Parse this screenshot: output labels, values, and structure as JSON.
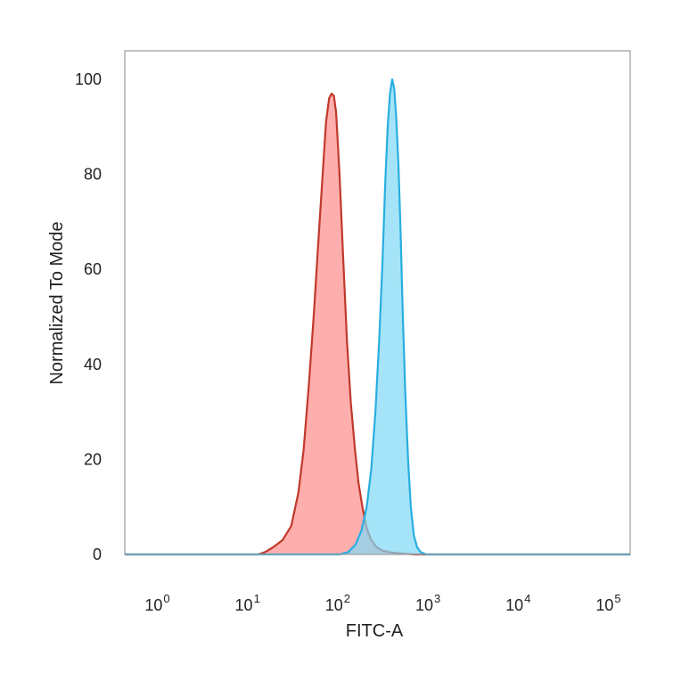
{
  "chart_data": {
    "type": "area",
    "title": "",
    "xlabel": "FITC-A",
    "ylabel": "Normalized To Mode",
    "x_scale": "log10",
    "xlim": [
      0.5,
      200000
    ],
    "ylim": [
      0,
      106
    ],
    "x_ticks": [
      {
        "value": 1,
        "base": "10",
        "exp": "0"
      },
      {
        "value": 10,
        "base": "10",
        "exp": "1"
      },
      {
        "value": 100,
        "base": "10",
        "exp": "2"
      },
      {
        "value": 1000,
        "base": "10",
        "exp": "3"
      },
      {
        "value": 10000,
        "base": "10",
        "exp": "4"
      },
      {
        "value": 100000,
        "base": "10",
        "exp": "5"
      }
    ],
    "y_ticks": [
      {
        "value": 0,
        "label": "0"
      },
      {
        "value": 20,
        "label": "20"
      },
      {
        "value": 40,
        "label": "40"
      },
      {
        "value": 60,
        "label": "60"
      },
      {
        "value": 80,
        "label": "80"
      },
      {
        "value": 100,
        "label": "100"
      }
    ],
    "grid": false,
    "legend": "none",
    "series": [
      {
        "fill": "#ff8c8c",
        "fill_opacity": 0.7,
        "stroke": "#c0392b",
        "points": [
          [
            0.5,
            0
          ],
          [
            15,
            0
          ],
          [
            18,
            0.5
          ],
          [
            22,
            1.5
          ],
          [
            28,
            3
          ],
          [
            35,
            6
          ],
          [
            42,
            13
          ],
          [
            48,
            22
          ],
          [
            55,
            36
          ],
          [
            62,
            50
          ],
          [
            70,
            66
          ],
          [
            78,
            80
          ],
          [
            85,
            91
          ],
          [
            92,
            96
          ],
          [
            98,
            97
          ],
          [
            104,
            96.5
          ],
          [
            110,
            93
          ],
          [
            120,
            80
          ],
          [
            132,
            62
          ],
          [
            145,
            45
          ],
          [
            160,
            32
          ],
          [
            178,
            22
          ],
          [
            195,
            15
          ],
          [
            215,
            10
          ],
          [
            240,
            5.5
          ],
          [
            270,
            3
          ],
          [
            310,
            1.5
          ],
          [
            360,
            0.8
          ],
          [
            450,
            0.4
          ],
          [
            600,
            0.2
          ],
          [
            800,
            0
          ],
          [
            200000,
            0
          ]
        ]
      },
      {
        "fill": "#7fd8f5",
        "fill_opacity": 0.7,
        "stroke": "#29aee0",
        "points": [
          [
            0.5,
            0
          ],
          [
            120,
            0
          ],
          [
            150,
            0.5
          ],
          [
            180,
            2
          ],
          [
            210,
            5
          ],
          [
            240,
            10
          ],
          [
            270,
            18
          ],
          [
            300,
            30
          ],
          [
            330,
            45
          ],
          [
            360,
            62
          ],
          [
            385,
            78
          ],
          [
            410,
            90
          ],
          [
            435,
            97
          ],
          [
            460,
            100
          ],
          [
            485,
            98
          ],
          [
            510,
            92
          ],
          [
            540,
            82
          ],
          [
            570,
            68
          ],
          [
            600,
            52
          ],
          [
            640,
            35
          ],
          [
            690,
            20
          ],
          [
            740,
            10
          ],
          [
            800,
            4
          ],
          [
            870,
            1.5
          ],
          [
            950,
            0.5
          ],
          [
            1100,
            0
          ],
          [
            200000,
            0
          ]
        ]
      }
    ]
  }
}
